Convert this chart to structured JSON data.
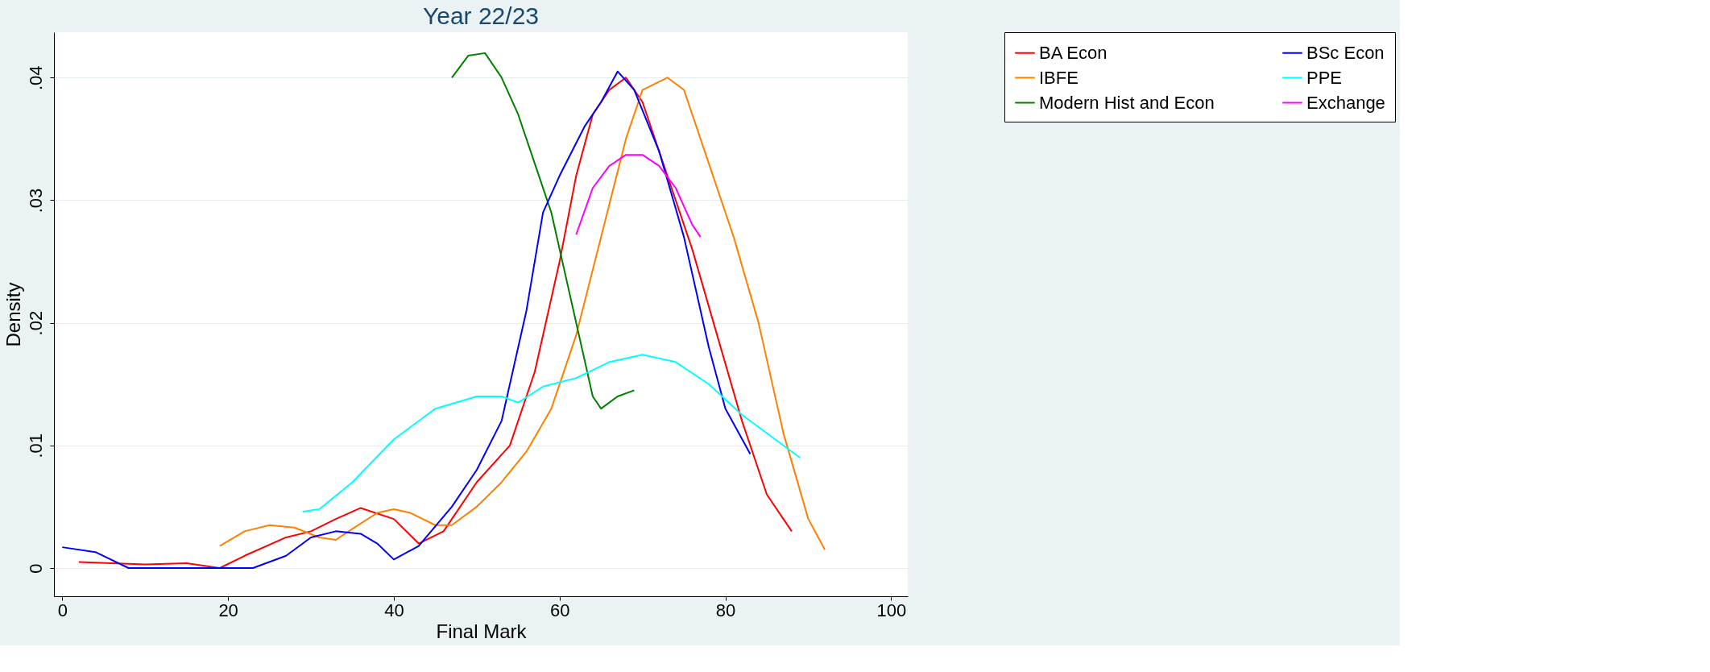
{
  "chart_data": {
    "type": "line",
    "title": "Year 22/23",
    "xlabel": "Final Mark",
    "ylabel": "Density",
    "xlim": [
      -1,
      102
    ],
    "ylim": [
      -0.0023,
      0.0437
    ],
    "xticks": [
      0,
      20,
      40,
      60,
      80,
      100
    ],
    "yticks": [
      0,
      {
        "value": 0.01,
        "label": ".01"
      },
      {
        "value": 0.02,
        "label": ".02"
      },
      {
        "value": 0.03,
        "label": ".03"
      },
      {
        "value": 0.04,
        "label": ".04"
      }
    ],
    "grid": "y",
    "legend": "right",
    "marker": "none",
    "line_style": "solid",
    "series": [
      {
        "name": "BA Econ",
        "color": "#ff0000",
        "x": [
          2,
          10,
          15,
          19,
          22,
          27,
          30,
          33,
          36,
          40,
          43,
          46,
          50,
          54,
          57,
          60,
          62,
          64,
          66,
          68,
          70,
          73,
          76,
          79,
          82,
          85,
          88
        ],
        "values": [
          0.0005,
          0.0003,
          0.0004,
          0.0,
          0.001,
          0.0025,
          0.003,
          0.004,
          0.0049,
          0.004,
          0.002,
          0.003,
          0.007,
          0.01,
          0.016,
          0.025,
          0.032,
          0.037,
          0.039,
          0.04,
          0.038,
          0.032,
          0.026,
          0.019,
          0.012,
          0.006,
          0.003
        ]
      },
      {
        "name": "IBFE",
        "color": "#ff8000",
        "x": [
          19,
          22,
          25,
          28,
          31,
          33,
          35,
          38,
          40,
          42,
          45,
          47,
          50,
          53,
          56,
          59,
          62,
          65,
          68,
          70,
          73,
          75,
          78,
          81,
          84,
          87,
          90,
          92
        ],
        "values": [
          0.0018,
          0.003,
          0.0035,
          0.0033,
          0.0025,
          0.0023,
          0.0032,
          0.0045,
          0.0048,
          0.0045,
          0.0035,
          0.0035,
          0.005,
          0.007,
          0.0095,
          0.013,
          0.019,
          0.027,
          0.035,
          0.039,
          0.04,
          0.039,
          0.033,
          0.027,
          0.02,
          0.011,
          0.004,
          0.0015
        ]
      },
      {
        "name": "Modern Hist and Econ",
        "color": "#008000",
        "x": [
          47,
          49,
          51,
          53,
          55,
          57,
          59,
          61,
          63,
          64,
          65,
          67,
          69
        ],
        "values": [
          0.04,
          0.0418,
          0.042,
          0.04,
          0.037,
          0.033,
          0.029,
          0.023,
          0.017,
          0.014,
          0.013,
          0.014,
          0.0145
        ]
      },
      {
        "name": "BSc Econ",
        "color": "#0000ff",
        "x": [
          0,
          4,
          8,
          15,
          23,
          27,
          30,
          33,
          36,
          38,
          40,
          43,
          47,
          50,
          53,
          56,
          58,
          60,
          63,
          65,
          67,
          69,
          72,
          75,
          78,
          80,
          83
        ],
        "values": [
          0.0017,
          0.0013,
          0.0,
          0.0,
          0.0,
          0.001,
          0.0025,
          0.003,
          0.0028,
          0.002,
          0.0007,
          0.0018,
          0.005,
          0.008,
          0.012,
          0.021,
          0.029,
          0.032,
          0.036,
          0.038,
          0.0405,
          0.039,
          0.034,
          0.027,
          0.018,
          0.013,
          0.0093
        ]
      },
      {
        "name": "PPE",
        "color": "#00ffff",
        "x": [
          29,
          31,
          35,
          40,
          45,
          50,
          53,
          55,
          58,
          62,
          66,
          70,
          74,
          78,
          82,
          86,
          89
        ],
        "values": [
          0.0046,
          0.0048,
          0.007,
          0.0105,
          0.013,
          0.014,
          0.014,
          0.0135,
          0.0148,
          0.0155,
          0.0168,
          0.0174,
          0.0168,
          0.015,
          0.0125,
          0.0105,
          0.009
        ]
      },
      {
        "name": "Exchange",
        "color": "#ff00ff",
        "x": [
          62,
          64,
          66,
          68,
          70,
          72,
          74,
          76,
          77
        ],
        "values": [
          0.0272,
          0.031,
          0.0328,
          0.0337,
          0.0337,
          0.0328,
          0.031,
          0.028,
          0.027
        ]
      }
    ]
  }
}
